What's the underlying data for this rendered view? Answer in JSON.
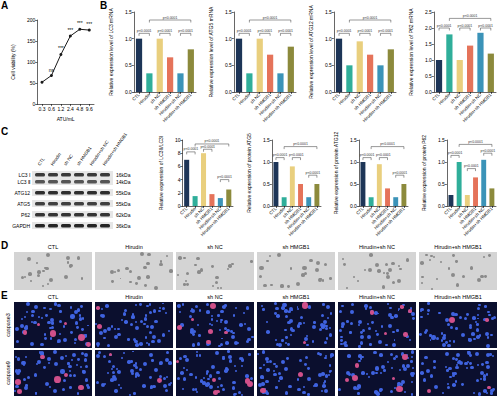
{
  "chart_data": [
    {
      "type": "line",
      "xlabel": "ATU/mL",
      "ylabel": "Cell viability (%)",
      "categories": [
        "0.3",
        "0.6",
        "1.2",
        "2.4",
        "4.8",
        "9.6"
      ],
      "values": [
        52,
        68,
        118,
        162,
        178,
        176
      ],
      "annotations": [
        null,
        "ns",
        "***",
        "***",
        "***",
        "***"
      ],
      "color": "#1a1a1a",
      "marker": "circle",
      "line_style": "solid",
      "ylim": [
        0,
        200
      ],
      "yticks": [
        0,
        50,
        100,
        150,
        200
      ],
      "grid": false
    },
    {
      "type": "bar",
      "ylabel": "Relative expression level of LC3 mRNA",
      "categories": [
        "CTL",
        "Hirudin",
        "sh NC",
        "sh HMGB1",
        "Hirudin+sh NC",
        "Hirudin+sh HMGB1"
      ],
      "values": [
        1.0,
        0.35,
        1.0,
        0.65,
        0.35,
        0.8
      ],
      "colors": [
        "#1d3557",
        "#2fae9a",
        "#e9cf7e",
        "#e5735a",
        "#3b93b8",
        "#8c8a3c"
      ],
      "ylim": [
        0,
        1.5
      ],
      "yticks": [
        {
          "value": 0,
          "label": "0.0"
        },
        0.5,
        {
          "value": 1,
          "label": "1.0"
        },
        1.5
      ],
      "brackets": [
        {
          "from": "CTL",
          "to": "Hirudin",
          "y": 1.1,
          "label": "p<0.0001"
        },
        {
          "from": "sh NC",
          "to": "sh HMGB1",
          "y": 1.1,
          "label": "p<0.0001"
        },
        {
          "from": "Hirudin+sh NC",
          "to": "Hirudin+sh HMGB1",
          "y": 1.1,
          "label": "p<0.0001"
        },
        {
          "from": "Hirudin",
          "to": "Hirudin+sh HMGB1",
          "y": 1.35,
          "label": "p<0.0001"
        }
      ],
      "grid": false
    },
    {
      "type": "bar",
      "ylabel": "Relative expression level of ATG5 mRNA",
      "categories": [
        "CTL",
        "Hirudin",
        "sh NC",
        "sh HMGB1",
        "Hirudin+sh NC",
        "Hirudin+sh HMGB1"
      ],
      "values": [
        1.0,
        0.35,
        1.0,
        0.7,
        0.35,
        0.85
      ],
      "colors": [
        "#1d3557",
        "#2fae9a",
        "#e9cf7e",
        "#e5735a",
        "#3b93b8",
        "#8c8a3c"
      ],
      "ylim": [
        0,
        1.5
      ],
      "yticks": [
        {
          "value": 0,
          "label": "0.0"
        },
        0.5,
        {
          "value": 1,
          "label": "1.0"
        },
        1.5
      ],
      "brackets": [
        {
          "from": "CTL",
          "to": "Hirudin",
          "y": 1.1,
          "label": "p<0.0001"
        },
        {
          "from": "sh NC",
          "to": "sh HMGB1",
          "y": 1.1,
          "label": "p<0.0001"
        },
        {
          "from": "Hirudin+sh NC",
          "to": "Hirudin+sh HMGB1",
          "y": 1.1,
          "label": "p<0.0001"
        },
        {
          "from": "Hirudin",
          "to": "Hirudin+sh HMGB1",
          "y": 1.35,
          "label": "p<0.0001"
        }
      ],
      "grid": false
    },
    {
      "type": "bar",
      "ylabel": "Relative expression level of ATG12 mRNA",
      "categories": [
        "CTL",
        "Hirudin",
        "sh NC",
        "sh HMGB1",
        "Hirudin+sh NC",
        "Hirudin+sh HMGB1"
      ],
      "values": [
        1.0,
        0.5,
        0.95,
        0.7,
        0.5,
        0.8
      ],
      "colors": [
        "#1d3557",
        "#2fae9a",
        "#e9cf7e",
        "#e5735a",
        "#3b93b8",
        "#8c8a3c"
      ],
      "ylim": [
        0,
        1.5
      ],
      "yticks": [
        {
          "value": 0,
          "label": "0.0"
        },
        0.5,
        {
          "value": 1,
          "label": "1.0"
        },
        1.5
      ],
      "brackets": [
        {
          "from": "CTL",
          "to": "Hirudin",
          "y": 1.1,
          "label": "p<0.0001"
        },
        {
          "from": "sh NC",
          "to": "sh HMGB1",
          "y": 1.1,
          "label": "p<0.0001"
        },
        {
          "from": "Hirudin+sh NC",
          "to": "Hirudin+sh HMGB1",
          "y": 1.1,
          "label": "p<0.0001"
        },
        {
          "from": "Hirudin",
          "to": "Hirudin+sh HMGB1",
          "y": 1.35,
          "label": "p<0.0001"
        }
      ],
      "grid": false
    },
    {
      "type": "bar",
      "ylabel": "Relative expression level of P62 mRNA",
      "categories": [
        "CTL",
        "Hirudin",
        "sh NC",
        "sh HMGB1",
        "Hirudin+sh NC",
        "Hirudin+sh HMGB1"
      ],
      "values": [
        1.0,
        1.8,
        1.0,
        1.45,
        1.85,
        1.2
      ],
      "colors": [
        "#1d3557",
        "#2fae9a",
        "#e9cf7e",
        "#e5735a",
        "#3b93b8",
        "#8c8a3c"
      ],
      "ylim": [
        0,
        2.5
      ],
      "yticks": [
        {
          "value": 0,
          "label": "0.0"
        },
        0.5,
        {
          "value": 1,
          "label": "1.0"
        },
        1.5,
        {
          "value": 2,
          "label": "2.0"
        },
        2.5
      ],
      "brackets": [
        {
          "from": "CTL",
          "to": "Hirudin",
          "y": 2.0,
          "label": "p<0.0001"
        },
        {
          "from": "sh NC",
          "to": "sh HMGB1",
          "y": 2.0,
          "label": "p<0.0001"
        },
        {
          "from": "Hirudin+sh NC",
          "to": "Hirudin+sh HMGB1",
          "y": 2.0,
          "label": "p<0.0001"
        },
        {
          "from": "Hirudin",
          "to": "Hirudin+sh HMGB1",
          "y": 2.3,
          "label": "p<0.0001"
        }
      ],
      "grid": false
    },
    {
      "type": "bar",
      "ylabel": "Relative expression of LC3II/LC3I",
      "categories": [
        "CTL",
        "Hirudin",
        "sh NC",
        "sh HMGB1",
        "Hirudin+sh NC",
        "Hirudin+sh HMGB1"
      ],
      "values": [
        7,
        1.5,
        8,
        1.8,
        1.2,
        2.5
      ],
      "colors": [
        "#1d3557",
        "#2fae9a",
        "#e9cf7e",
        "#e5735a",
        "#3b93b8",
        "#8c8a3c"
      ],
      "ylim": [
        0,
        10
      ],
      "yticks": [
        0,
        2,
        4,
        6,
        8,
        10
      ],
      "brackets": [
        {
          "from": "CTL",
          "to": "Hirudin",
          "y": 8.2,
          "label": "p<0.0001"
        },
        {
          "from": "sh NC",
          "to": "sh HMGB1",
          "y": 8.6,
          "label": "p<0.0001"
        },
        {
          "from": "Hirudin+sh NC",
          "to": "Hirudin+sh HMGB1",
          "y": 4,
          "label": "p<0.0001"
        },
        {
          "from": "Hirudin",
          "to": "Hirudin+sh HMGB1",
          "y": 9.4,
          "label": "p<0.0001"
        }
      ],
      "grid": false
    },
    {
      "type": "bar",
      "ylabel": "Relative expression of protein ATG5",
      "categories": [
        "CTL",
        "Hirudin",
        "sh NC",
        "sh HMGB1",
        "Hirudin+sh NC",
        "Hirudin+sh HMGB1"
      ],
      "values": [
        1.0,
        0.2,
        0.9,
        0.5,
        0.2,
        0.5
      ],
      "colors": [
        "#1d3557",
        "#2fae9a",
        "#e9cf7e",
        "#e5735a",
        "#3b93b8",
        "#8c8a3c"
      ],
      "ylim": [
        0,
        1.5
      ],
      "yticks": [
        {
          "value": 0,
          "label": "0.0"
        },
        0.5,
        {
          "value": 1,
          "label": "1.0"
        },
        1.5
      ],
      "brackets": [
        {
          "from": "CTL",
          "to": "Hirudin",
          "y": 1.1,
          "label": "p<0.0001"
        },
        {
          "from": "sh NC",
          "to": "sh HMGB1",
          "y": 1.1,
          "label": "p<0.0001"
        },
        {
          "from": "Hirudin+sh NC",
          "to": "Hirudin+sh HMGB1",
          "y": 0.7,
          "label": "p<0.0001"
        },
        {
          "from": "Hirudin",
          "to": "Hirudin+sh HMGB1",
          "y": 1.35,
          "label": "p<0.0001"
        }
      ],
      "grid": false
    },
    {
      "type": "bar",
      "ylabel": "Relative expression of protein ATG12",
      "categories": [
        "CTL",
        "Hirudin",
        "sh NC",
        "sh HMGB1",
        "Hirudin+sh NC",
        "Hirudin+sh HMGB1"
      ],
      "values": [
        1.0,
        0.2,
        0.95,
        0.4,
        0.2,
        0.5
      ],
      "colors": [
        "#1d3557",
        "#2fae9a",
        "#e9cf7e",
        "#e5735a",
        "#3b93b8",
        "#8c8a3c"
      ],
      "ylim": [
        0,
        1.5
      ],
      "yticks": [
        {
          "value": 0,
          "label": "0.0"
        },
        0.5,
        {
          "value": 1,
          "label": "1.0"
        },
        1.5
      ],
      "brackets": [
        {
          "from": "CTL",
          "to": "Hirudin",
          "y": 1.1,
          "label": "p<0.0001"
        },
        {
          "from": "sh NC",
          "to": "sh HMGB1",
          "y": 1.1,
          "label": "p<0.0001"
        },
        {
          "from": "Hirudin+sh NC",
          "to": "Hirudin+sh HMGB1",
          "y": 0.7,
          "label": "p<0.0001"
        },
        {
          "from": "Hirudin",
          "to": "Hirudin+sh HMGB1",
          "y": 1.35,
          "label": "p<0.0001"
        }
      ],
      "grid": false
    },
    {
      "type": "bar",
      "ylabel": "Relative expression of protein P62",
      "categories": [
        "CTL",
        "Hirudin",
        "sh NC",
        "sh HMGB1",
        "Hirudin+sh NC",
        "Hirudin+sh HMGB1"
      ],
      "values": [
        0.25,
        1.0,
        0.25,
        0.65,
        1.05,
        0.4
      ],
      "colors": [
        "#1d3557",
        "#2fae9a",
        "#e9cf7e",
        "#e5735a",
        "#3b93b8",
        "#8c8a3c"
      ],
      "ylim": [
        0,
        1.5
      ],
      "yticks": [
        {
          "value": 0,
          "label": "0.0"
        },
        0.5,
        {
          "value": 1,
          "label": "1.0"
        },
        1.5
      ],
      "brackets": [
        {
          "from": "CTL",
          "to": "Hirudin",
          "y": 1.15,
          "label": "p<0.0001"
        },
        {
          "from": "sh NC",
          "to": "sh HMGB1",
          "y": 0.85,
          "label": "p<0.0001"
        },
        {
          "from": "Hirudin+sh NC",
          "to": "Hirudin+sh HMGB1",
          "y": 1.2,
          "label": "p<0.0001"
        },
        {
          "from": "Hirudin",
          "to": "Hirudin+sh HMGB1",
          "y": 1.4,
          "label": "p<0.0001"
        }
      ],
      "grid": false
    }
  ],
  "panel_labels": [
    "A",
    "B",
    "C",
    "D",
    "E"
  ],
  "blot": {
    "lanes": [
      "CTL",
      "Hirudin",
      "sh NC",
      "sh HMGB1",
      "Hirudin+sh NC",
      "Hirudin+sh HMGB1"
    ],
    "rows": [
      {
        "label": "LC3 Ⅰ",
        "size": "16kDa"
      },
      {
        "label": "LC3 Ⅱ",
        "size": "14kDa"
      },
      {
        "label": "ATG12",
        "size": "55kDa"
      },
      {
        "label": "ATG5",
        "size": "55kDa"
      },
      {
        "label": "P62",
        "size": "62kDa"
      },
      {
        "label": "GAPDH",
        "size": "36kDa"
      }
    ]
  },
  "images_D": {
    "labels": [
      "CTL",
      "Hirudin",
      "sh NC",
      "sh HMGB1",
      "Hirudin+sh NC",
      "Hirudin+sh HMGB1"
    ]
  },
  "images_E": {
    "columns": [
      "CTL",
      "Hirudin",
      "sh NC",
      "sh HMGB1",
      "Hirudin+sh NC",
      "Hirudin+sh HMGB1"
    ],
    "rows": [
      "caspase3",
      "caspase9"
    ]
  }
}
